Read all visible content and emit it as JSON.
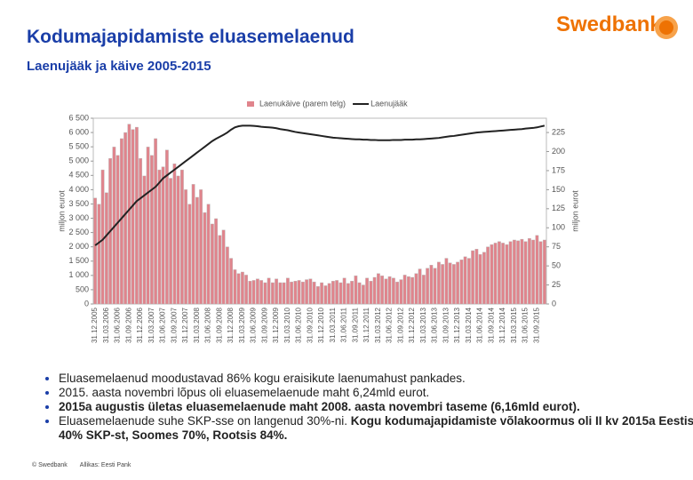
{
  "header": {
    "title": "Kodumajapidamiste eluasemelaenud",
    "subtitle": "Laenujääk ja käive 2005-2015",
    "logo": "Swedbank"
  },
  "chart_data": {
    "type": "bar",
    "legend": "top",
    "ylabel": "miljon eurot",
    "y2label": "miljon eurot",
    "ylim": [
      0,
      6500
    ],
    "yticks": [
      0,
      500,
      {
        "value": 1000,
        "label": "1 000"
      },
      {
        "value": 1500,
        "label": "1 500"
      },
      {
        "value": 2000,
        "label": "2 000"
      },
      {
        "value": 2500,
        "label": "2 500"
      },
      {
        "value": 3000,
        "label": "3 000"
      },
      {
        "value": 3500,
        "label": "3 500"
      },
      {
        "value": 4000,
        "label": "4 000"
      },
      {
        "value": 4500,
        "label": "4 500"
      },
      {
        "value": 5000,
        "label": "5 000"
      },
      {
        "value": 5500,
        "label": "5 500"
      },
      {
        "value": 6000,
        "label": "6 000"
      },
      {
        "value": 6500,
        "label": "6 500"
      }
    ],
    "y2lim": [
      0,
      243.75
    ],
    "y2ticks": [
      0,
      25,
      50,
      75,
      100,
      125,
      150,
      175,
      200,
      225
    ],
    "categories": [
      "31.12.2005",
      null,
      null,
      "31.03.2006",
      null,
      null,
      "31.06.2006",
      null,
      null,
      "31.09.2006",
      null,
      null,
      "31.12.2006",
      null,
      null,
      "31.03.2007",
      null,
      null,
      "31.06.2007",
      null,
      null,
      "31.09.2007",
      null,
      null,
      "31.12.2007",
      null,
      null,
      "31.03.2008",
      null,
      null,
      "31.06.2008",
      null,
      null,
      "31.09.2008",
      null,
      null,
      "31.12.2008",
      null,
      null,
      "31.03.2009",
      null,
      null,
      "31.06.2009",
      null,
      null,
      "31.09.2009",
      null,
      null,
      "31.12.2009",
      null,
      null,
      "31.03.2010",
      null,
      null,
      "31.06.2010",
      null,
      null,
      "31.09.2010",
      null,
      null,
      "31.12.2010",
      null,
      null,
      "31.03.2011",
      null,
      null,
      "31.06.2011",
      null,
      null,
      "31.09.2011",
      null,
      null,
      "31.12.2011",
      null,
      null,
      "31.03.2012",
      null,
      null,
      "31.06.2012",
      null,
      null,
      "31.09.2012",
      null,
      null,
      "31.12.2012",
      null,
      null,
      "31.03.2013",
      null,
      null,
      "31.06.2013",
      null,
      null,
      "31.09.2013",
      null,
      null,
      "31.12.2013",
      null,
      null,
      "31.03.2014",
      null,
      null,
      "31.06.2014",
      null,
      null,
      "31.09.2014",
      null,
      null,
      "31.12.2014",
      null,
      null,
      "31.03.2015",
      null,
      null,
      "31.06.2015",
      null,
      null,
      "31.09.2015",
      null,
      null
    ],
    "series": [
      {
        "name": "Laenukäive (parem telg)",
        "type": "bar",
        "axis": "y2",
        "color": "#e0848c",
        "values": [
          139,
          131,
          176,
          146,
          191,
          206,
          195,
          217,
          225,
          236,
          229,
          232,
          191,
          168,
          206,
          195,
          217,
          176,
          180,
          202,
          165,
          184,
          168,
          176,
          150,
          131,
          157,
          140,
          150,
          120,
          131,
          105,
          112,
          90,
          97,
          75,
          60,
          45,
          40,
          42,
          38,
          30,
          31,
          33,
          31,
          28,
          34,
          28,
          33,
          28,
          28,
          34,
          29,
          30,
          31,
          29,
          32,
          33,
          29,
          23,
          28,
          24,
          27,
          30,
          31,
          28,
          34,
          27,
          30,
          37,
          28,
          25,
          34,
          30,
          35,
          40,
          37,
          33,
          36,
          34,
          29,
          32,
          38,
          36,
          35,
          40,
          46,
          38,
          47,
          51,
          47,
          55,
          52,
          60,
          54,
          52,
          55,
          58,
          62,
          60,
          70,
          72,
          65,
          68,
          75,
          78,
          80,
          82,
          80,
          78,
          82,
          84,
          83,
          85,
          82,
          86,
          84,
          90,
          82,
          84
        ]
      },
      {
        "name": "Laenujääk",
        "type": "line",
        "color": "#222222",
        "values": [
          2050,
          2150,
          2250,
          2400,
          2550,
          2700,
          2850,
          3000,
          3150,
          3300,
          3450,
          3600,
          3700,
          3800,
          3900,
          4000,
          4100,
          4250,
          4400,
          4500,
          4600,
          4700,
          4800,
          4900,
          5000,
          5100,
          5200,
          5300,
          5400,
          5500,
          5600,
          5700,
          5780,
          5850,
          5920,
          6000,
          6100,
          6180,
          6220,
          6240,
          6240,
          6240,
          6230,
          6220,
          6200,
          6190,
          6180,
          6170,
          6150,
          6120,
          6100,
          6080,
          6050,
          6020,
          6000,
          5980,
          5960,
          5940,
          5920,
          5900,
          5880,
          5860,
          5840,
          5820,
          5810,
          5800,
          5790,
          5780,
          5770,
          5760,
          5760,
          5750,
          5750,
          5740,
          5740,
          5730,
          5730,
          5730,
          5730,
          5740,
          5740,
          5740,
          5750,
          5750,
          5750,
          5760,
          5760,
          5770,
          5780,
          5790,
          5800,
          5810,
          5830,
          5850,
          5870,
          5880,
          5900,
          5920,
          5940,
          5960,
          5980,
          6000,
          6010,
          6020,
          6030,
          6040,
          6050,
          6060,
          6070,
          6080,
          6090,
          6100,
          6110,
          6120,
          6140,
          6150,
          6160,
          6180,
          6210,
          6240
        ]
      }
    ]
  },
  "bullets": [
    [
      {
        "text": "Eluasemelaenud moodustavad 86% kogu eraisikute laenumahust pankades."
      }
    ],
    [
      {
        "text": "2015. aasta novembri lõpus oli eluasemelaenude maht 6,24mld eurot."
      }
    ],
    [
      {
        "text": "2015a augustis ületas eluasemelaenude maht 2008. aasta novembri taseme (6,16mld eurot).",
        "bold": true
      }
    ],
    [
      {
        "text": "Eluasemelaenude suhe SKP-sse on langenud 30%-ni. "
      },
      {
        "text": "Kogu kodumajapidamiste võlakoormus oli II kv 2015a Eestis 40% SKP-st, Soomes 70%, Rootsis 84%.",
        "bold": true
      }
    ]
  ],
  "footer": {
    "copyright": "© Swedbank",
    "source": "Allikas: Eesti Pank"
  }
}
